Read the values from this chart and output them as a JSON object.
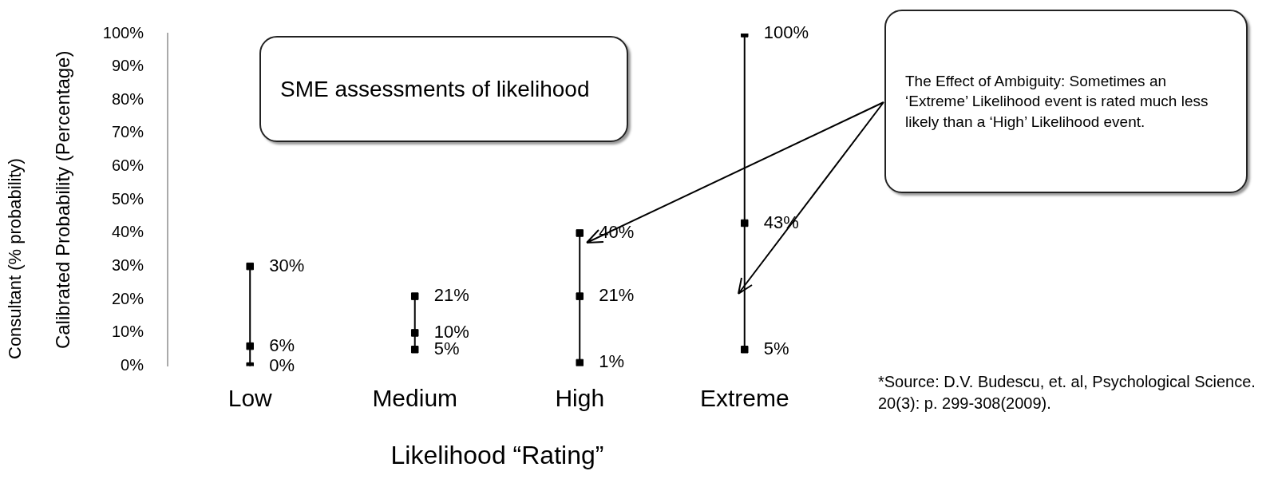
{
  "chart_data": {
    "type": "scatter",
    "categories": [
      "Low",
      "Medium",
      "High",
      "Extreme"
    ],
    "xlabel": "Likelihood “Rating”",
    "marker": "square",
    "ylabel": "Calibrated Probability (Percentage)",
    "ylim": [
      0,
      100
    ],
    "yticks": [
      {
        "value": 0,
        "label": "0%"
      },
      {
        "value": 10,
        "label": "10%"
      },
      {
        "value": 20,
        "label": "20%"
      },
      {
        "value": 30,
        "label": "30%"
      },
      {
        "value": 40,
        "label": "40%"
      },
      {
        "value": 50,
        "label": "50%"
      },
      {
        "value": 60,
        "label": "60%"
      },
      {
        "value": 70,
        "label": "70%"
      },
      {
        "value": 80,
        "label": "80%"
      },
      {
        "value": 90,
        "label": "90%"
      },
      {
        "value": 100,
        "label": "100%"
      }
    ],
    "series": [
      {
        "color": "#000000",
        "values": [
          30,
          21,
          40,
          100
        ],
        "value_labels": [
          "30%",
          "21%",
          "40%",
          "100%"
        ]
      },
      {
        "color": "#000000",
        "values": [
          6,
          10,
          21,
          43
        ],
        "value_labels": [
          "6%",
          "10%",
          "21%",
          "43%"
        ]
      },
      {
        "color": "#000000",
        "values": [
          0,
          5,
          1,
          5
        ],
        "value_labels": [
          "0%",
          "5%",
          "1%",
          "5%"
        ]
      }
    ],
    "annotations": [
      "SME assessments of likelihood",
      "The Effect of Ambiguity: Sometimes an ‘Extreme’ Likelihood event is rated much less likely than a ‘High’ Likelihood event.",
      "Consultant (% probability)",
      "*Source: D.V. Budescu, et. al, Psychological Science. 20(3): p. 299-308(2009)."
    ]
  }
}
